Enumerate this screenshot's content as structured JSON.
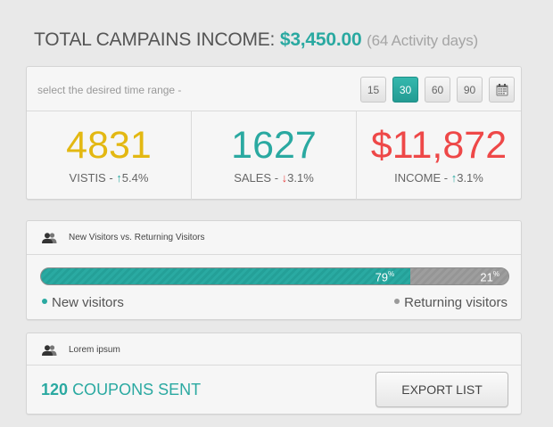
{
  "header": {
    "title_prefix": "TOTAL CAMPAINS INCOME:",
    "amount": "$3,450.00",
    "days_note": "(64 Activity days)"
  },
  "range": {
    "label": "select the desired time range -",
    "options": [
      "15",
      "30",
      "60",
      "90"
    ],
    "selected": "30",
    "calendar_icon": "calendar-icon"
  },
  "stats": [
    {
      "value": "4831",
      "label": "VISTIS -",
      "trend": "up",
      "arrow": "↑",
      "pct": "5.4%",
      "color": "#e3b812"
    },
    {
      "value": "1627",
      "label": "SALES -",
      "trend": "down",
      "arrow": "↓",
      "pct": "3.1%",
      "color": "#2aa9a1"
    },
    {
      "value": "$11,872",
      "label": "INCOME -",
      "trend": "up",
      "arrow": "↑",
      "pct": "3.1%",
      "color": "#ee4848"
    }
  ],
  "visitors": {
    "title": "New Visitors vs. Returning Visitors",
    "icon": "users-icon",
    "new_pct": 79,
    "returning_pct": 21,
    "new_label": "New visitors",
    "returning_label": "Returning visitors"
  },
  "coupons": {
    "title": "Lorem ipsum",
    "icon": "users-icon",
    "count": "120",
    "text": "COUPONS SENT",
    "export_label": "EXPORT LIST"
  },
  "colors": {
    "accent": "#2aa9a1",
    "grey_bar": "#9a9a9a"
  }
}
